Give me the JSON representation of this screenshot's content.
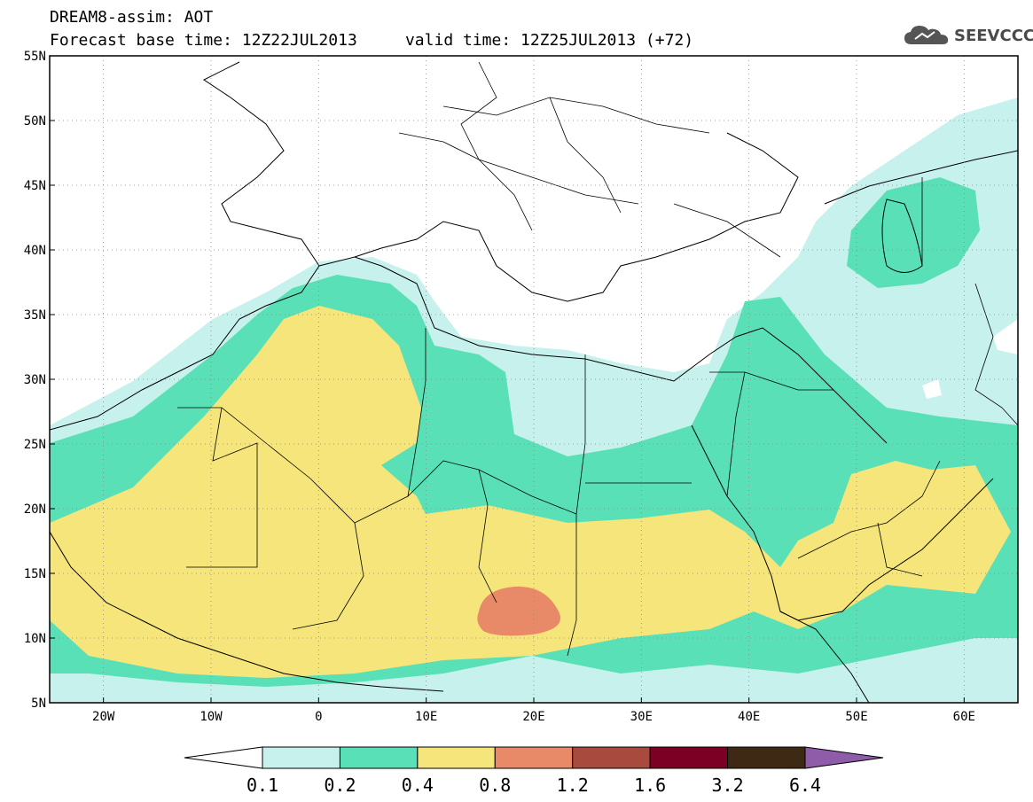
{
  "header": {
    "line1": "DREAM8-assim: AOT",
    "line2": "Forecast base time: 12Z22JUL2013     valid time: 12Z25JUL2013 (+72)"
  },
  "logo": {
    "text": "SEEVCCC",
    "icon": "cloud-icon"
  },
  "axes": {
    "lon_min": -25,
    "lon_max": 65,
    "lat_min": 5,
    "lat_max": 55,
    "lon_ticks": [
      {
        "value": -20,
        "label": "20W"
      },
      {
        "value": -10,
        "label": "10W"
      },
      {
        "value": 0,
        "label": "0"
      },
      {
        "value": 10,
        "label": "10E"
      },
      {
        "value": 20,
        "label": "20E"
      },
      {
        "value": 30,
        "label": "30E"
      },
      {
        "value": 40,
        "label": "40E"
      },
      {
        "value": 50,
        "label": "50E"
      },
      {
        "value": 60,
        "label": "60E"
      }
    ],
    "lat_ticks": [
      {
        "value": 55,
        "label": "55N"
      },
      {
        "value": 50,
        "label": "50N"
      },
      {
        "value": 45,
        "label": "45N"
      },
      {
        "value": 40,
        "label": "40N"
      },
      {
        "value": 35,
        "label": "35N"
      },
      {
        "value": 30,
        "label": "30N"
      },
      {
        "value": 25,
        "label": "25N"
      },
      {
        "value": 20,
        "label": "20N"
      },
      {
        "value": 15,
        "label": "15N"
      },
      {
        "value": 10,
        "label": "10N"
      },
      {
        "value": 5,
        "label": "5N"
      }
    ],
    "grid": "dotted"
  },
  "colorbar": {
    "colors": [
      "#ffffff",
      "#c7f1ec",
      "#59e0b7",
      "#f5e57a",
      "#e88a67",
      "#a84a3d",
      "#7c0023",
      "#3e2a14",
      "#8e5ca8"
    ],
    "labels": [
      "0.1",
      "0.2",
      "0.4",
      "0.8",
      "1.2",
      "1.6",
      "3.2",
      "6.4"
    ]
  },
  "fields": {
    "c01": "#c7f1ec",
    "c02": "#59e0b7",
    "c04": "#f5e57a",
    "c08": "#e88a67"
  }
}
